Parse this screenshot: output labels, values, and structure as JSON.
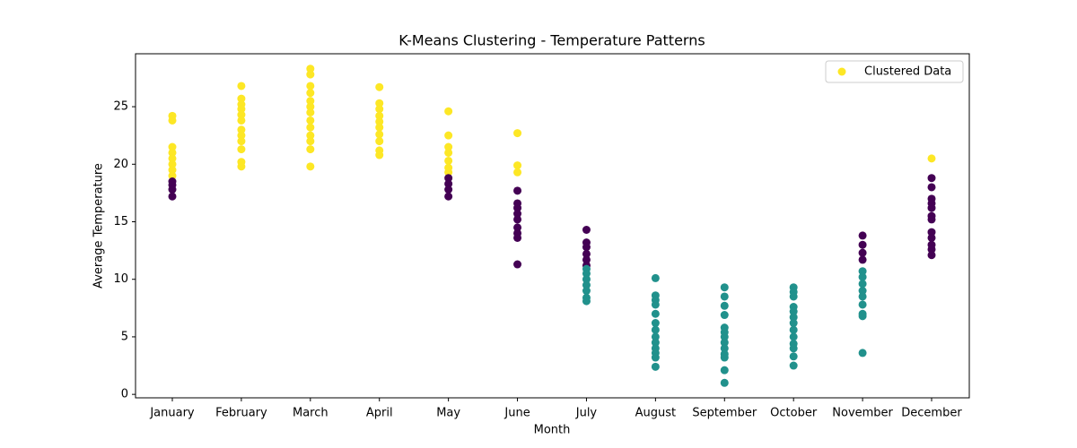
{
  "chart_data": {
    "type": "scatter",
    "title": "K-Means Clustering - Temperature Patterns",
    "xlabel": "Month",
    "ylabel": "Average Temperature",
    "categories": [
      "January",
      "February",
      "March",
      "April",
      "May",
      "June",
      "July",
      "August",
      "September",
      "October",
      "November",
      "December"
    ],
    "ylim": [
      -0.3,
      29.6
    ],
    "yticks": [
      0,
      5,
      10,
      15,
      20,
      25
    ],
    "legend": "upper right",
    "cluster_colors": [
      "#440154",
      "#21918c",
      "#fde725"
    ],
    "series": [
      {
        "name": "Clustered Data",
        "color": "#fde725",
        "x": [
          "January",
          "January",
          "January",
          "January",
          "January",
          "January",
          "January",
          "January",
          "January",
          "January",
          "January",
          "January",
          "February",
          "February",
          "February",
          "February",
          "February",
          "February",
          "February",
          "February",
          "February",
          "February",
          "February",
          "February",
          "March",
          "March",
          "March",
          "March",
          "March",
          "March",
          "March",
          "March",
          "March",
          "March",
          "March",
          "March",
          "March",
          "April",
          "April",
          "April",
          "April",
          "April",
          "April",
          "April",
          "April",
          "April",
          "April",
          "May",
          "May",
          "May",
          "May",
          "May",
          "May",
          "May",
          "May",
          "May",
          "May",
          "May",
          "June",
          "June",
          "June",
          "June",
          "June",
          "June",
          "June",
          "June",
          "June",
          "June",
          "June",
          "June",
          "July",
          "July",
          "July",
          "July",
          "July",
          "July",
          "July",
          "July",
          "July",
          "July",
          "July",
          "July",
          "July",
          "August",
          "August",
          "August",
          "August",
          "August",
          "August",
          "August",
          "August",
          "August",
          "August",
          "August",
          "August",
          "August",
          "September",
          "September",
          "September",
          "September",
          "September",
          "September",
          "September",
          "September",
          "September",
          "September",
          "September",
          "September",
          "September",
          "October",
          "October",
          "October",
          "October",
          "October",
          "October",
          "October",
          "October",
          "October",
          "October",
          "October",
          "October",
          "October",
          "November",
          "November",
          "November",
          "November",
          "November",
          "November",
          "November",
          "November",
          "November",
          "November",
          "November",
          "November",
          "November",
          "December",
          "December",
          "December",
          "December",
          "December",
          "December",
          "December",
          "December",
          "December",
          "December",
          "December",
          "December",
          "December"
        ],
        "values": [
          24.2,
          23.8,
          21.5,
          21.0,
          20.5,
          20.0,
          19.5,
          19.0,
          18.5,
          18.2,
          17.8,
          17.2,
          26.8,
          25.7,
          25.2,
          24.8,
          24.3,
          23.8,
          23.0,
          22.5,
          22.0,
          21.3,
          20.2,
          19.8,
          28.3,
          27.8,
          26.8,
          26.2,
          25.5,
          25.0,
          24.5,
          23.8,
          23.2,
          22.5,
          22.0,
          21.3,
          19.8,
          26.7,
          25.3,
          24.8,
          24.2,
          23.7,
          23.2,
          22.6,
          22.0,
          21.2,
          20.8,
          24.6,
          22.5,
          21.5,
          21.0,
          20.3,
          19.7,
          19.3,
          18.8,
          18.3,
          17.8,
          17.2,
          22.7,
          19.9,
          19.3,
          17.7,
          16.6,
          16.2,
          15.7,
          15.2,
          14.5,
          14.0,
          13.6,
          11.3,
          14.3,
          13.2,
          12.8,
          12.2,
          11.7,
          11.2,
          10.9,
          10.5,
          10.0,
          9.5,
          9.0,
          8.4,
          8.1,
          10.1,
          8.6,
          8.2,
          7.8,
          7.0,
          6.2,
          5.6,
          5.0,
          4.5,
          4.0,
          3.6,
          3.2,
          2.4,
          9.3,
          8.5,
          7.7,
          6.9,
          5.8,
          5.4,
          5.0,
          4.5,
          4.0,
          3.5,
          3.2,
          2.1,
          1.0,
          9.3,
          8.9,
          8.5,
          7.6,
          7.2,
          6.7,
          6.2,
          5.6,
          5.0,
          4.4,
          4.0,
          3.3,
          2.5,
          13.8,
          13.0,
          12.3,
          11.7,
          10.7,
          10.2,
          9.6,
          9.0,
          8.5,
          7.8,
          7.0,
          6.8,
          3.6,
          20.5,
          18.8,
          18.0,
          17.0,
          16.6,
          16.2,
          15.5,
          15.2,
          14.1,
          13.6,
          13.0,
          12.6,
          12.1
        ],
        "cluster": [
          2,
          2,
          2,
          2,
          2,
          2,
          2,
          2,
          0,
          0,
          0,
          0,
          2,
          2,
          2,
          2,
          2,
          2,
          2,
          2,
          2,
          2,
          2,
          2,
          2,
          2,
          2,
          2,
          2,
          2,
          2,
          2,
          2,
          2,
          2,
          2,
          2,
          2,
          2,
          2,
          2,
          2,
          2,
          2,
          2,
          2,
          2,
          2,
          2,
          2,
          2,
          2,
          2,
          2,
          0,
          0,
          0,
          0,
          2,
          2,
          2,
          0,
          0,
          0,
          0,
          0,
          0,
          0,
          0,
          0,
          0,
          0,
          0,
          0,
          0,
          0,
          1,
          1,
          1,
          1,
          1,
          1,
          1,
          1,
          1,
          1,
          1,
          1,
          1,
          1,
          1,
          1,
          1,
          1,
          1,
          1,
          1,
          1,
          1,
          1,
          1,
          1,
          1,
          1,
          1,
          1,
          1,
          1,
          1,
          1,
          1,
          1,
          1,
          1,
          1,
          1,
          1,
          1,
          1,
          1,
          1,
          1,
          0,
          0,
          0,
          0,
          1,
          1,
          1,
          1,
          1,
          1,
          1,
          1,
          1,
          2,
          0,
          0,
          0,
          0,
          0,
          0,
          0,
          0,
          0,
          0,
          0,
          0
        ]
      }
    ]
  }
}
